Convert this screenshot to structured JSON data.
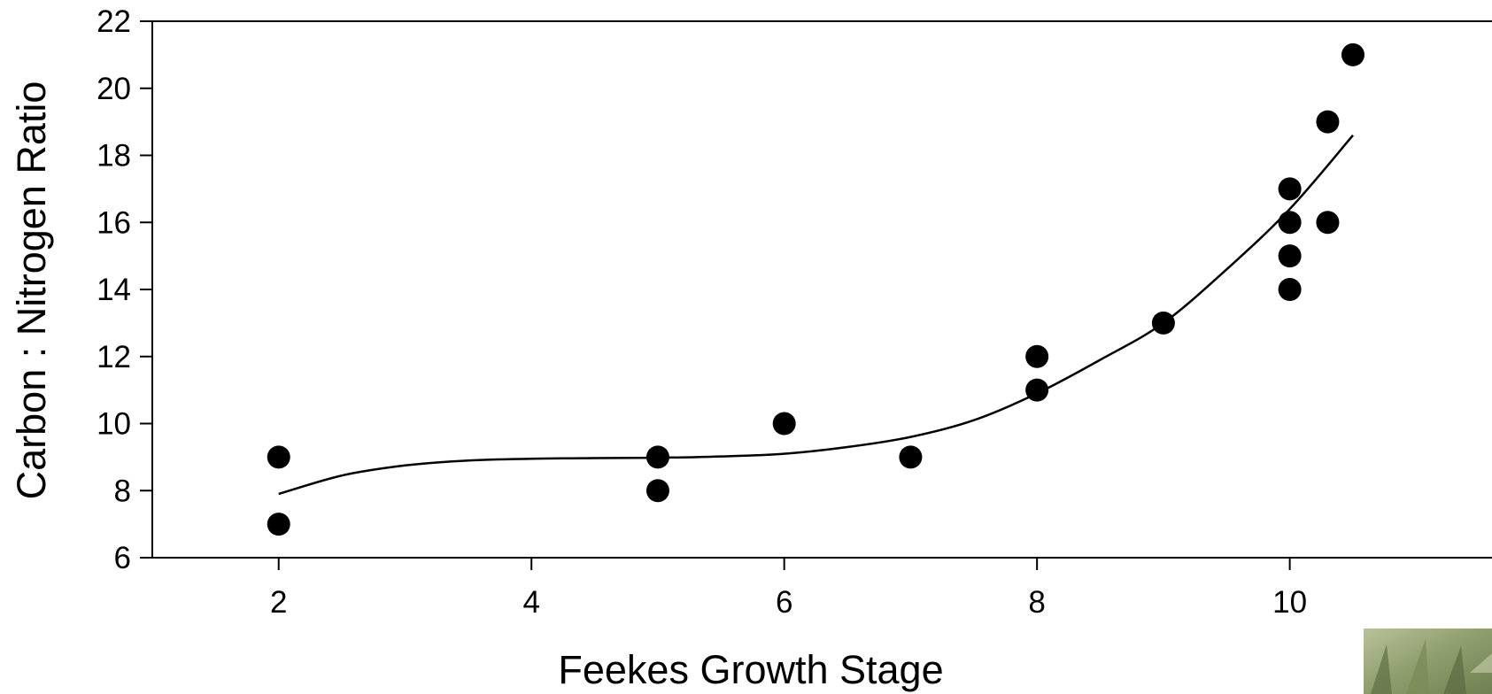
{
  "chart_data": {
    "type": "scatter",
    "title": "",
    "xlabel": "Feekes Growth Stage",
    "ylabel": "Carbon : Nitrogen Ratio",
    "xlim": [
      1,
      11.6
    ],
    "ylim": [
      6,
      22
    ],
    "xticks": [
      2,
      4,
      6,
      8,
      10
    ],
    "yticks": [
      6,
      8,
      10,
      12,
      14,
      16,
      18,
      20,
      22
    ],
    "grid": false,
    "legend": "none",
    "series": [
      {
        "points": [
          {
            "x": 2,
            "y": 9
          },
          {
            "x": 2,
            "y": 7
          },
          {
            "x": 5,
            "y": 9
          },
          {
            "x": 5,
            "y": 8
          },
          {
            "x": 6,
            "y": 10
          },
          {
            "x": 7,
            "y": 9
          },
          {
            "x": 8,
            "y": 12
          },
          {
            "x": 8,
            "y": 11
          },
          {
            "x": 9,
            "y": 13
          },
          {
            "x": 10,
            "y": 17
          },
          {
            "x": 10,
            "y": 16
          },
          {
            "x": 10,
            "y": 15
          },
          {
            "x": 10,
            "y": 14
          },
          {
            "x": 10.3,
            "y": 19
          },
          {
            "x": 10.3,
            "y": 16
          },
          {
            "x": 10.5,
            "y": 21
          }
        ],
        "color": "#000000"
      }
    ],
    "fit_line": {
      "type": "polynomial",
      "x": [
        2,
        2.5,
        3,
        3.5,
        4,
        4.5,
        5,
        5.5,
        6,
        6.5,
        7,
        7.5,
        8,
        8.5,
        9,
        9.5,
        10,
        10.5
      ],
      "y": [
        7.9,
        8.45,
        8.75,
        8.9,
        8.95,
        8.97,
        8.98,
        9.02,
        9.1,
        9.3,
        9.6,
        10.1,
        10.9,
        11.9,
        13.0,
        14.6,
        16.4,
        18.6
      ],
      "color": "#000000"
    }
  }
}
